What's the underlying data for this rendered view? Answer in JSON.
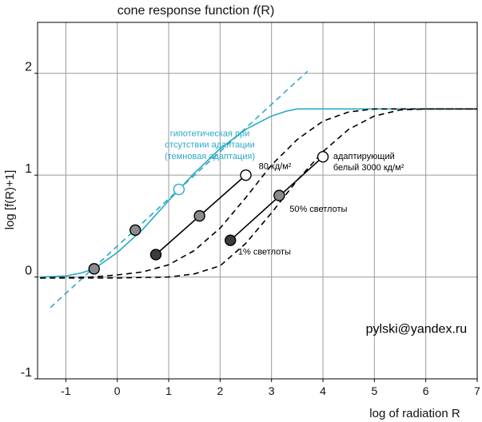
{
  "chart_data": {
    "type": "line",
    "title": "cone response function f(R)",
    "title_parts": [
      "cone response function ",
      "f",
      "(R)"
    ],
    "xlabel": "log of radiation R",
    "ylabel": "log [f(R)+1]",
    "xlim": [
      -1.55,
      7.0
    ],
    "ylim": [
      -1.0,
      2.5
    ],
    "xticks": [
      -1,
      0,
      1,
      2,
      3,
      4,
      5,
      6,
      7
    ],
    "yticks": [
      -1,
      0,
      1,
      2
    ],
    "grid": true,
    "colors": {
      "cyan": "#29a9c7",
      "black": "#000000",
      "grid": "#9a9a9a",
      "marker_gray": "#8a8a8a",
      "marker_dark": "#3c3c3c"
    },
    "series": [
      {
        "style": "cyan-solid",
        "x": [
          -1.5,
          -1.0,
          -0.7,
          -0.45,
          0.0,
          0.5,
          1.0,
          1.5,
          2.0,
          2.5,
          3.0,
          3.3,
          3.5,
          3.8,
          4.5,
          5.5,
          7.0
        ],
        "y": [
          0.0,
          0.01,
          0.04,
          0.08,
          0.24,
          0.47,
          0.75,
          1.02,
          1.26,
          1.45,
          1.58,
          1.63,
          1.65,
          1.65,
          1.65,
          1.65,
          1.65
        ]
      },
      {
        "style": "cyan-dashed",
        "x": [
          -1.3,
          3.7
        ],
        "y": [
          -0.3,
          2.02
        ]
      },
      {
        "style": "black-dashed",
        "x": [
          -1.5,
          -0.5,
          0.0,
          0.5,
          1.0,
          1.5,
          2.0,
          2.5,
          3.0,
          3.5,
          4.0,
          4.5,
          5.0,
          5.5,
          6.0,
          7.0
        ],
        "y": [
          -0.01,
          0.0,
          0.02,
          0.05,
          0.12,
          0.26,
          0.48,
          0.78,
          1.1,
          1.35,
          1.53,
          1.62,
          1.65,
          1.65,
          1.65,
          1.65
        ]
      },
      {
        "style": "black-dashed",
        "x": [
          -1.5,
          -0.5,
          0.0,
          1.0,
          1.5,
          2.0,
          2.5,
          3.0,
          3.5,
          4.0,
          4.5,
          5.0,
          5.5,
          6.0,
          7.0
        ],
        "y": [
          -0.01,
          -0.01,
          -0.01,
          0.0,
          0.03,
          0.11,
          0.33,
          0.63,
          0.95,
          1.23,
          1.45,
          1.58,
          1.64,
          1.65,
          1.65
        ]
      },
      {
        "style": "black-solid",
        "x": [
          0.75,
          2.5
        ],
        "y": [
          0.22,
          1.0
        ]
      },
      {
        "style": "black-solid",
        "x": [
          2.2,
          4.0
        ],
        "y": [
          0.36,
          1.18
        ]
      }
    ],
    "markers": [
      {
        "x": -0.45,
        "y": 0.08,
        "fill": "marker_gray"
      },
      {
        "x": 0.35,
        "y": 0.46,
        "fill": "marker_gray"
      },
      {
        "x": 1.2,
        "y": 0.86,
        "fill": "white",
        "stroke": "cyan"
      },
      {
        "x": 0.75,
        "y": 0.22,
        "fill": "marker_dark"
      },
      {
        "x": 1.6,
        "y": 0.6,
        "fill": "marker_gray"
      },
      {
        "x": 2.5,
        "y": 1.0,
        "fill": "white",
        "stroke": "black"
      },
      {
        "x": 2.2,
        "y": 0.36,
        "fill": "marker_dark"
      },
      {
        "x": 3.15,
        "y": 0.8,
        "fill": "marker_gray"
      },
      {
        "x": 4.0,
        "y": 1.18,
        "fill": "white",
        "stroke": "black"
      }
    ],
    "annotations": [
      {
        "text": "гипотетическая при",
        "color": "cyan",
        "x": 1.8,
        "y": 1.38,
        "anchor": "middle",
        "size": 11
      },
      {
        "text": "отсутствии адаптации",
        "color": "cyan",
        "x": 1.8,
        "y": 1.27,
        "anchor": "middle",
        "size": 11
      },
      {
        "text": "(темновая адаптация)",
        "color": "cyan",
        "x": 1.8,
        "y": 1.16,
        "anchor": "middle",
        "size": 11
      },
      {
        "text": "80 кд/м²",
        "color": "black",
        "x": 2.75,
        "y": 1.06,
        "anchor": "start",
        "size": 11
      },
      {
        "text": "адаптирующий",
        "color": "black",
        "x": 4.2,
        "y": 1.16,
        "anchor": "start",
        "size": 11
      },
      {
        "text": "белый 3000 кд/м²",
        "color": "black",
        "x": 4.2,
        "y": 1.05,
        "anchor": "start",
        "size": 11
      },
      {
        "text": "50% светлоты",
        "color": "black",
        "x": 3.35,
        "y": 0.64,
        "anchor": "start",
        "size": 11
      },
      {
        "text": "1% светлоты",
        "color": "black",
        "x": 2.35,
        "y": 0.22,
        "anchor": "start",
        "size": 11
      },
      {
        "text": "pylski@yandex.ru",
        "color": "black",
        "x": 6.8,
        "y": -0.55,
        "anchor": "end",
        "size": 16
      }
    ]
  }
}
